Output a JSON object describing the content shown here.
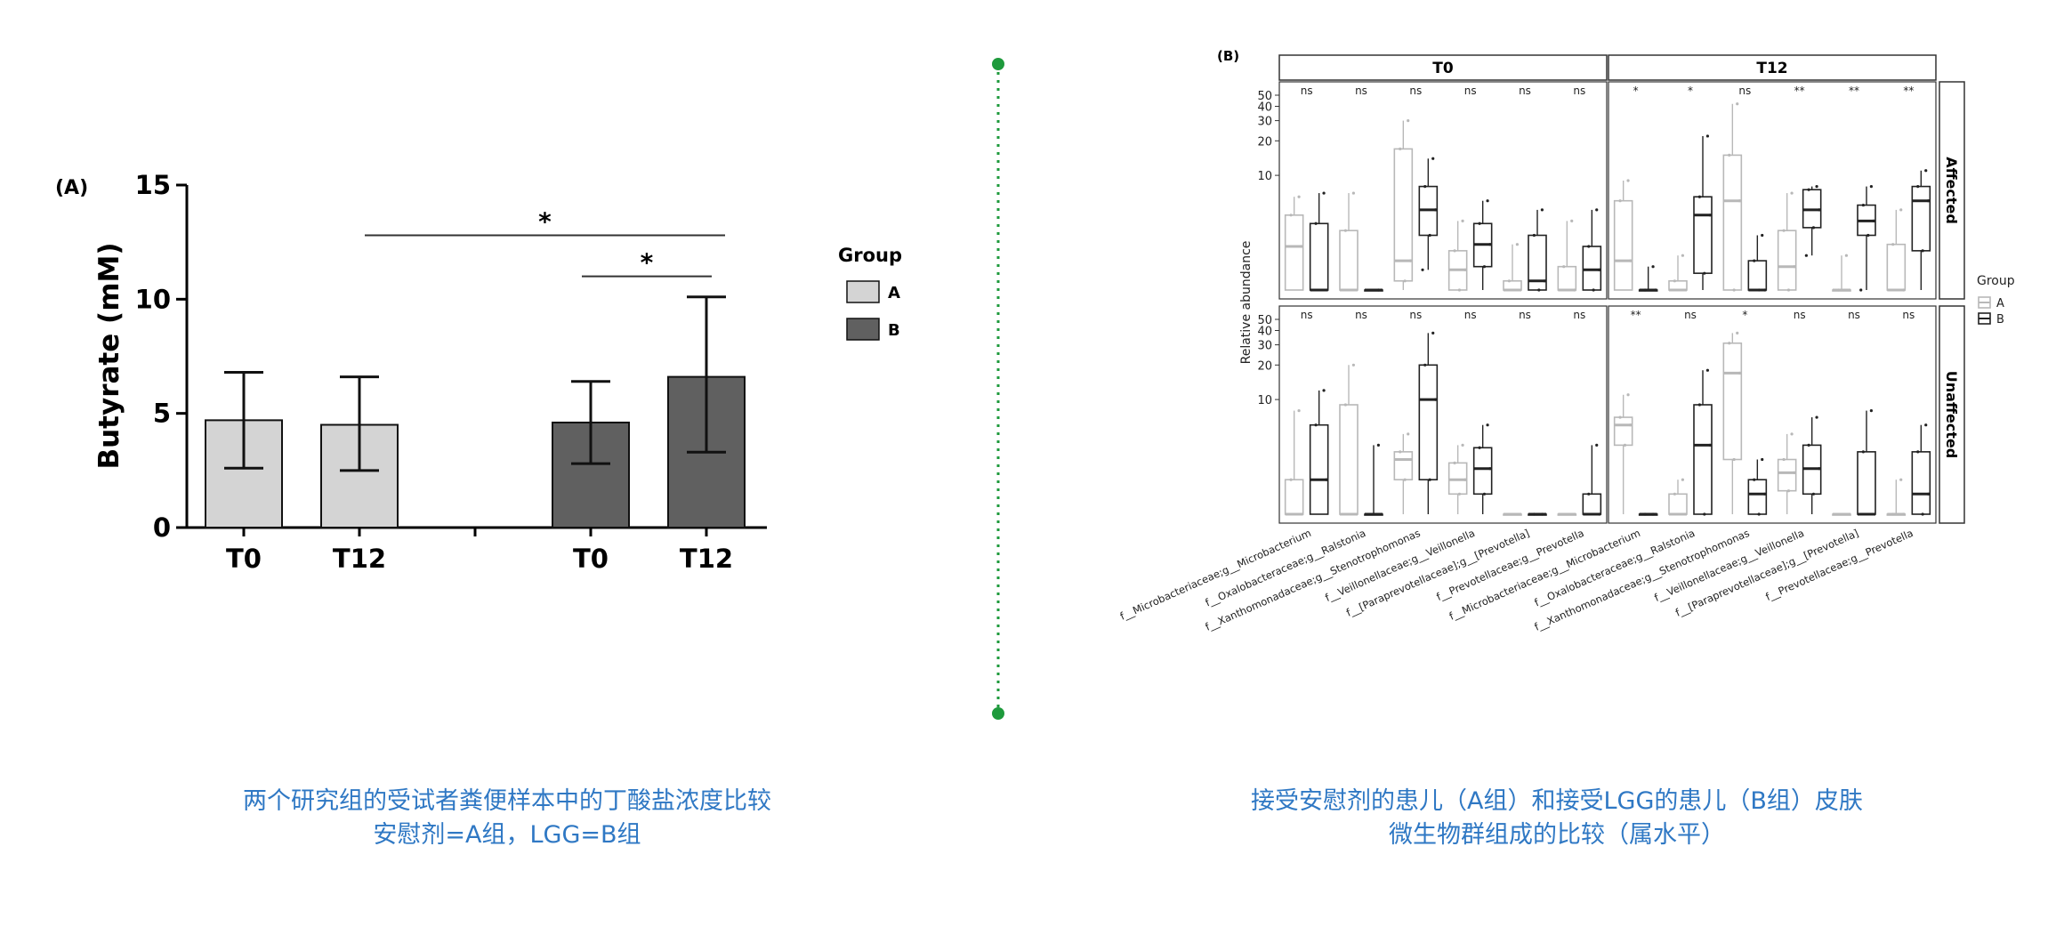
{
  "panel_a": {
    "label": "(A)",
    "chart_data": {
      "type": "bar",
      "ylabel": "Butyrate (mM)",
      "xlabel": "",
      "ylim": [
        0,
        15
      ],
      "yticks": [
        0,
        5,
        10,
        15
      ],
      "groups": [
        {
          "group": "A",
          "categories": [
            "T0",
            "T12"
          ],
          "values": [
            4.7,
            4.5
          ],
          "error_low": [
            2.6,
            2.5
          ],
          "error_high": [
            6.8,
            6.6
          ]
        },
        {
          "group": "B",
          "categories": [
            "T0",
            "T12"
          ],
          "values": [
            4.6,
            6.6
          ],
          "error_low": [
            2.8,
            3.3
          ],
          "error_high": [
            6.4,
            10.1
          ]
        }
      ],
      "significance": [
        {
          "from": "A T12",
          "to": "B T12",
          "y": 12.8,
          "label": "*"
        },
        {
          "from": "B T0",
          "to": "B T12",
          "y": 11.0,
          "label": "*"
        }
      ],
      "legend_title": "Group",
      "legend": [
        {
          "name": "A",
          "color": "#d4d4d4"
        },
        {
          "name": "B",
          "color": "#606060"
        }
      ],
      "legend_position": "right"
    },
    "caption_line1": "两个研究组的受试者粪便样本中的丁酸盐浓度比较",
    "caption_line2": "安慰剂=A组，LGG=B组"
  },
  "panel_b": {
    "label": "(B)",
    "chart_data": {
      "type": "box",
      "ylabel": "Relative abundance",
      "yticks": [
        10,
        20,
        30,
        40,
        50
      ],
      "columns": [
        "T0",
        "T12"
      ],
      "rows": [
        "Affected",
        "Unaffected"
      ],
      "taxa": [
        "f__Microbacteriaceae;g__Microbacterium",
        "f__Oxalobacteraceae;g__Ralstonia",
        "f__Xanthomonadaceae;g__Stenotrophomonas",
        "f__Veillonellaceae;g__Veillonella",
        "f__[Paraprevotellaceae];g__[Prevotella]",
        "f__Prevotellaceae;g__Prevotella"
      ],
      "significance": {
        "Affected": {
          "T0": [
            "ns",
            "ns",
            "ns",
            "ns",
            "ns",
            "ns"
          ],
          "T12": [
            "*",
            "*",
            "ns",
            "**",
            "**",
            "**"
          ]
        },
        "Unaffected": {
          "T0": [
            "ns",
            "ns",
            "ns",
            "ns",
            "ns",
            "ns"
          ],
          "T12": [
            "**",
            "ns",
            "*",
            "ns",
            "ns",
            "ns"
          ]
        }
      },
      "boxes": {
        "Affected": {
          "T0": [
            {
              "A": [
                0,
                0,
                2.4,
                4.5,
                6.5
              ],
              "B": [
                0,
                0,
                0,
                3.8,
                7
              ]
            },
            {
              "A": [
                0,
                0,
                0,
                3.3,
                7
              ],
              "B": [
                0,
                0,
                0,
                0,
                0.6
              ]
            },
            {
              "A": [
                0,
                1.2,
                1.8,
                17,
                30
              ],
              "B": [
                1.5,
                3,
                5,
                8,
                14
              ]
            },
            {
              "A": [
                0,
                1,
                1.5,
                2.2,
                4
              ],
              "B": [
                0,
                1.6,
                2.5,
                3.8,
                6
              ]
            },
            {
              "A": [
                0,
                0,
                0,
                1.2,
                2.5
              ],
              "B": [
                0,
                0.6,
                1.2,
                3,
                5
              ]
            },
            {
              "A": [
                0,
                0,
                0.3,
                1.6,
                4
              ],
              "B": [
                0,
                1,
                1.5,
                2.4,
                5
              ]
            }
          ],
          "T12": [
            {
              "A": [
                0,
                0,
                1.8,
                6,
                9
              ],
              "B": [
                0,
                0,
                0.3,
                0.8,
                1.6
              ]
            },
            {
              "A": [
                0,
                0,
                0,
                1.2,
                2
              ],
              "B": [
                0,
                1.4,
                4.5,
                6.5,
                22
              ]
            },
            {
              "A": [
                0,
                1,
                6,
                15,
                42
              ],
              "B": [
                0,
                0.6,
                1,
                1.8,
                3
              ]
            },
            {
              "A": [
                0,
                0.8,
                1.6,
                3.3,
                7
              ],
              "B": [
                2,
                3.5,
                5,
                7.5,
                8
              ]
            },
            {
              "A": [
                0,
                0,
                0,
                1,
                2
              ],
              "B": [
                1,
                3,
                4,
                5.5,
                8
              ]
            },
            {
              "A": [
                0,
                0,
                0.5,
                2.5,
                5
              ],
              "B": [
                0,
                2.2,
                6,
                8,
                11
              ]
            }
          ]
        },
        "Unaffected": {
          "T0": [
            {
              "A": [
                0,
                0,
                0,
                2,
                8
              ],
              "B": [
                0,
                0,
                2,
                6,
                12
              ]
            },
            {
              "A": [
                0,
                0,
                0,
                9,
                20
              ],
              "B": [
                0,
                0,
                0,
                0,
                4
              ]
            },
            {
              "A": [
                0,
                2,
                3,
                3.5,
                5
              ],
              "B": [
                0,
                2,
                10,
                20,
                38
              ]
            },
            {
              "A": [
                0,
                1.5,
                2,
                2.8,
                4
              ],
              "B": [
                0,
                1.5,
                2.5,
                3.8,
                6
              ]
            },
            {
              "A": [
                0,
                0,
                0,
                0,
                0
              ],
              "B": [
                0,
                0,
                0,
                0.2,
                1
              ]
            },
            {
              "A": [
                0,
                0,
                0,
                0,
                0
              ],
              "B": [
                0,
                0,
                0.5,
                1.5,
                4
              ]
            }
          ],
          "T12": [
            {
              "A": [
                0,
                4,
                6,
                7,
                11
              ],
              "B": [
                0,
                0,
                0,
                0.1,
                0.5
              ]
            },
            {
              "A": [
                0,
                0,
                0,
                1.5,
                2
              ],
              "B": [
                0,
                0.5,
                4,
                9,
                18
              ]
            },
            {
              "A": [
                0,
                3,
                17,
                31,
                38
              ],
              "B": [
                0,
                0.8,
                1.5,
                2,
                3
              ]
            },
            {
              "A": [
                0,
                1.6,
                2.3,
                3,
                5
              ],
              "B": [
                0,
                1.5,
                2.5,
                4,
                7
              ]
            },
            {
              "A": [
                0,
                0,
                0,
                0,
                0
              ],
              "B": [
                0,
                0,
                0,
                3.5,
                8
              ]
            },
            {
              "A": [
                0,
                0,
                0.5,
                1,
                2
              ],
              "B": [
                0,
                0.5,
                1.5,
                3.5,
                6
              ]
            }
          ]
        }
      },
      "legend_title": "Group",
      "legend": [
        {
          "name": "A",
          "color": "#b8b8b8"
        },
        {
          "name": "B",
          "color": "#222222"
        }
      ],
      "legend_position": "right"
    },
    "caption_line1": "接受安慰剂的患儿（A组）和接受LGG的患儿（B组）皮肤",
    "caption_line2": "微生物群组成的比较（属水平）"
  }
}
